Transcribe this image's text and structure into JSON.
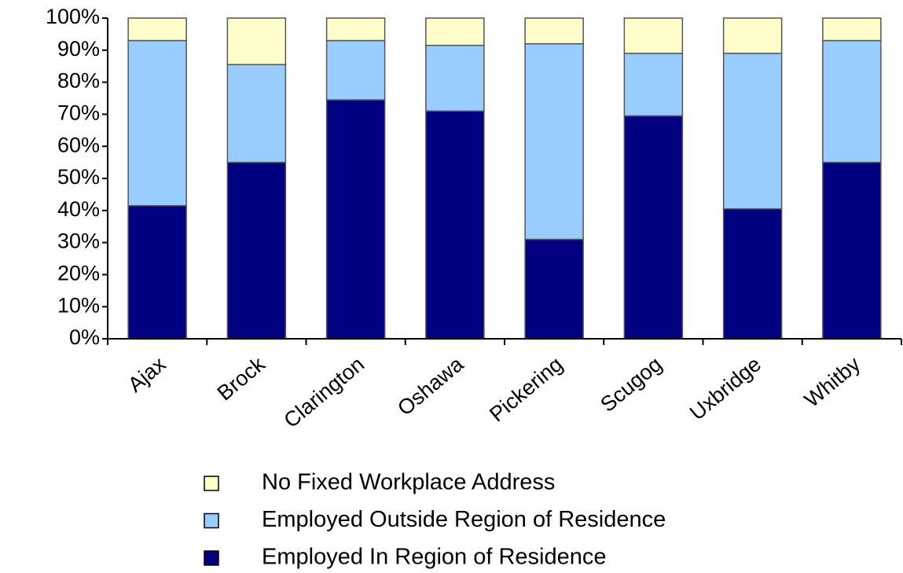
{
  "chart_data": {
    "type": "bar",
    "stacked": true,
    "categories": [
      "Ajax",
      "Brock",
      "Clarington",
      "Oshawa",
      "Pickering",
      "Scugog",
      "Uxbridge",
      "Whitby"
    ],
    "series": [
      {
        "name": "Employed In Region of Residence",
        "color": "#000080",
        "values": [
          41.5,
          55,
          74.5,
          71,
          31,
          69.5,
          40.5,
          55
        ]
      },
      {
        "name": "Employed Outside Region of Residence",
        "color": "#99ccff",
        "values": [
          51.5,
          30.5,
          18.5,
          20.5,
          61,
          19.5,
          48.5,
          38
        ]
      },
      {
        "name": "No Fixed Workplace Address",
        "color": "#ffffcc",
        "values": [
          7,
          14.5,
          7,
          8.5,
          8,
          11,
          11,
          7
        ]
      }
    ],
    "ylim": [
      0,
      100
    ],
    "yticks": [
      {
        "value": 0,
        "label": "0%"
      },
      {
        "value": 10,
        "label": "10%"
      },
      {
        "value": 20,
        "label": "20%"
      },
      {
        "value": 30,
        "label": "30%"
      },
      {
        "value": 40,
        "label": "40%"
      },
      {
        "value": 50,
        "label": "50%"
      },
      {
        "value": 60,
        "label": "60%"
      },
      {
        "value": 70,
        "label": "70%"
      },
      {
        "value": 80,
        "label": "80%"
      },
      {
        "value": 90,
        "label": "90%"
      },
      {
        "value": 100,
        "label": "100%"
      }
    ],
    "grid": false
  }
}
